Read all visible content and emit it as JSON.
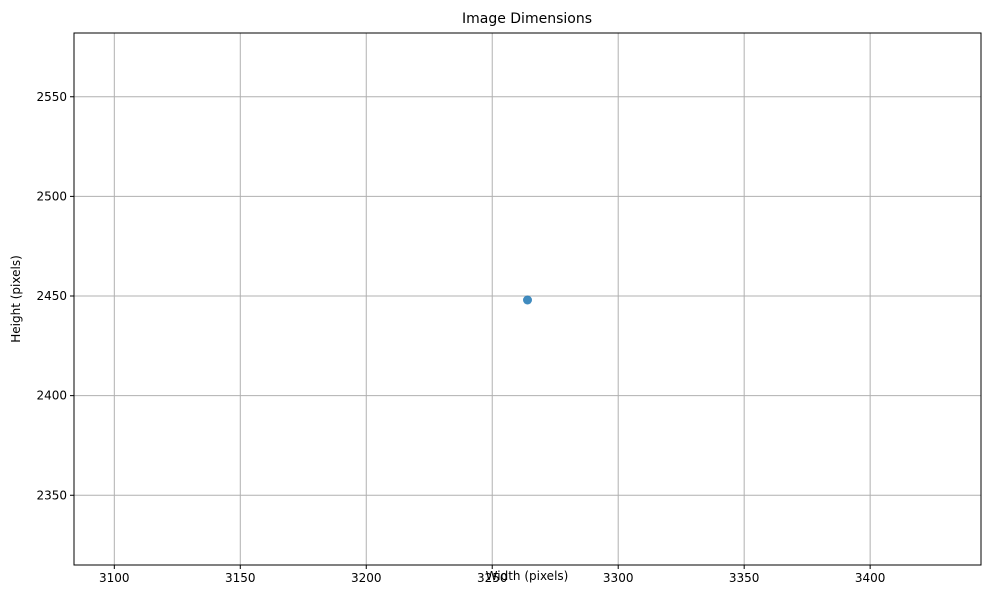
{
  "chart_data": {
    "type": "scatter",
    "title": "Image Dimensions",
    "xlabel": "Width (pixels)",
    "ylabel": "Height (pixels)",
    "xlim": [
      3084,
      3444
    ],
    "ylim": [
      2315,
      2582
    ],
    "x_ticks": [
      3100,
      3150,
      3200,
      3250,
      3300,
      3350,
      3400
    ],
    "y_ticks": [
      2350,
      2400,
      2450,
      2500,
      2550
    ],
    "grid": true,
    "series": [
      {
        "color": "#1f77b4",
        "points": [
          {
            "x": 3264,
            "y": 2448
          }
        ]
      }
    ]
  }
}
